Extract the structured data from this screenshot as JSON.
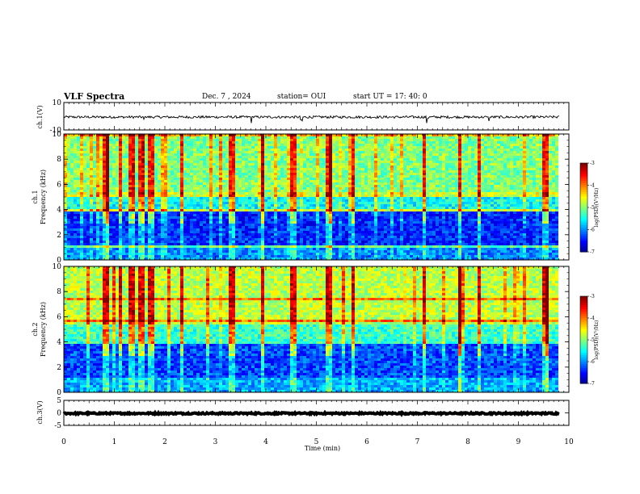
{
  "chart_data": {
    "type": "heatmap",
    "title": "VLF Spectra",
    "header": {
      "date": "Dec. 7 , 2024",
      "station": "station= OUI",
      "start": "start UT = 17: 40: 0"
    },
    "xlabel": "Time (min)",
    "xlim": [
      0,
      10
    ],
    "x_ticks": [
      "0",
      "1",
      "2",
      "3",
      "4",
      "5",
      "6",
      "7",
      "8",
      "9",
      "10"
    ],
    "panels": [
      {
        "id": "ch1-waveform",
        "type": "line",
        "ylabel": "ch.1(V)",
        "ylim": [
          -10,
          10
        ],
        "y_ticks": [
          "10",
          "-10"
        ],
        "level": -0.6,
        "noise_amplitude": 0.9,
        "spikes": [
          1.6,
          3.72,
          4.7,
          7.2,
          8.4
        ]
      },
      {
        "id": "ch1-spectrogram",
        "type": "heatmap",
        "ylabel_line1": "ch.1",
        "ylabel_line2": "Frequency (kHz)",
        "ylim": [
          0,
          10
        ],
        "y_ticks": [
          "0",
          "2",
          "4",
          "6",
          "8",
          "10"
        ],
        "colorbar": {
          "label": "log(PSD)(V²/Hz)",
          "range": [
            -7,
            -3
          ],
          "ticks": [
            "-3",
            "-4",
            "-5",
            "-6",
            "-7"
          ]
        }
      },
      {
        "id": "ch2-spectrogram",
        "type": "heatmap",
        "ylabel_line1": "ch.2",
        "ylabel_line2": "Frequency (kHz)",
        "ylim": [
          0,
          10
        ],
        "y_ticks": [
          "0",
          "2",
          "4",
          "6",
          "8",
          "10"
        ],
        "colorbar": {
          "label": "log(PSD)(V²/Hz)",
          "range": [
            -7,
            -3
          ],
          "ticks": [
            "-3",
            "-4",
            "-5",
            "-6",
            "-7"
          ]
        }
      },
      {
        "id": "ch3-waveform",
        "type": "line",
        "ylabel": "ch.3(V)",
        "ylim": [
          -5,
          5
        ],
        "y_ticks": [
          "5",
          "0",
          "-5"
        ],
        "level": -0.2,
        "noise_amplitude": 0.3,
        "spikes": []
      }
    ],
    "data_end_min": 9.82,
    "strong_emission_minutes": [
      0.8,
      1.1,
      1.3,
      1.5,
      1.7,
      2.3,
      3.3,
      3.9,
      4.5,
      5.2,
      5.7,
      7.1,
      7.8,
      8.2,
      9.5
    ]
  }
}
